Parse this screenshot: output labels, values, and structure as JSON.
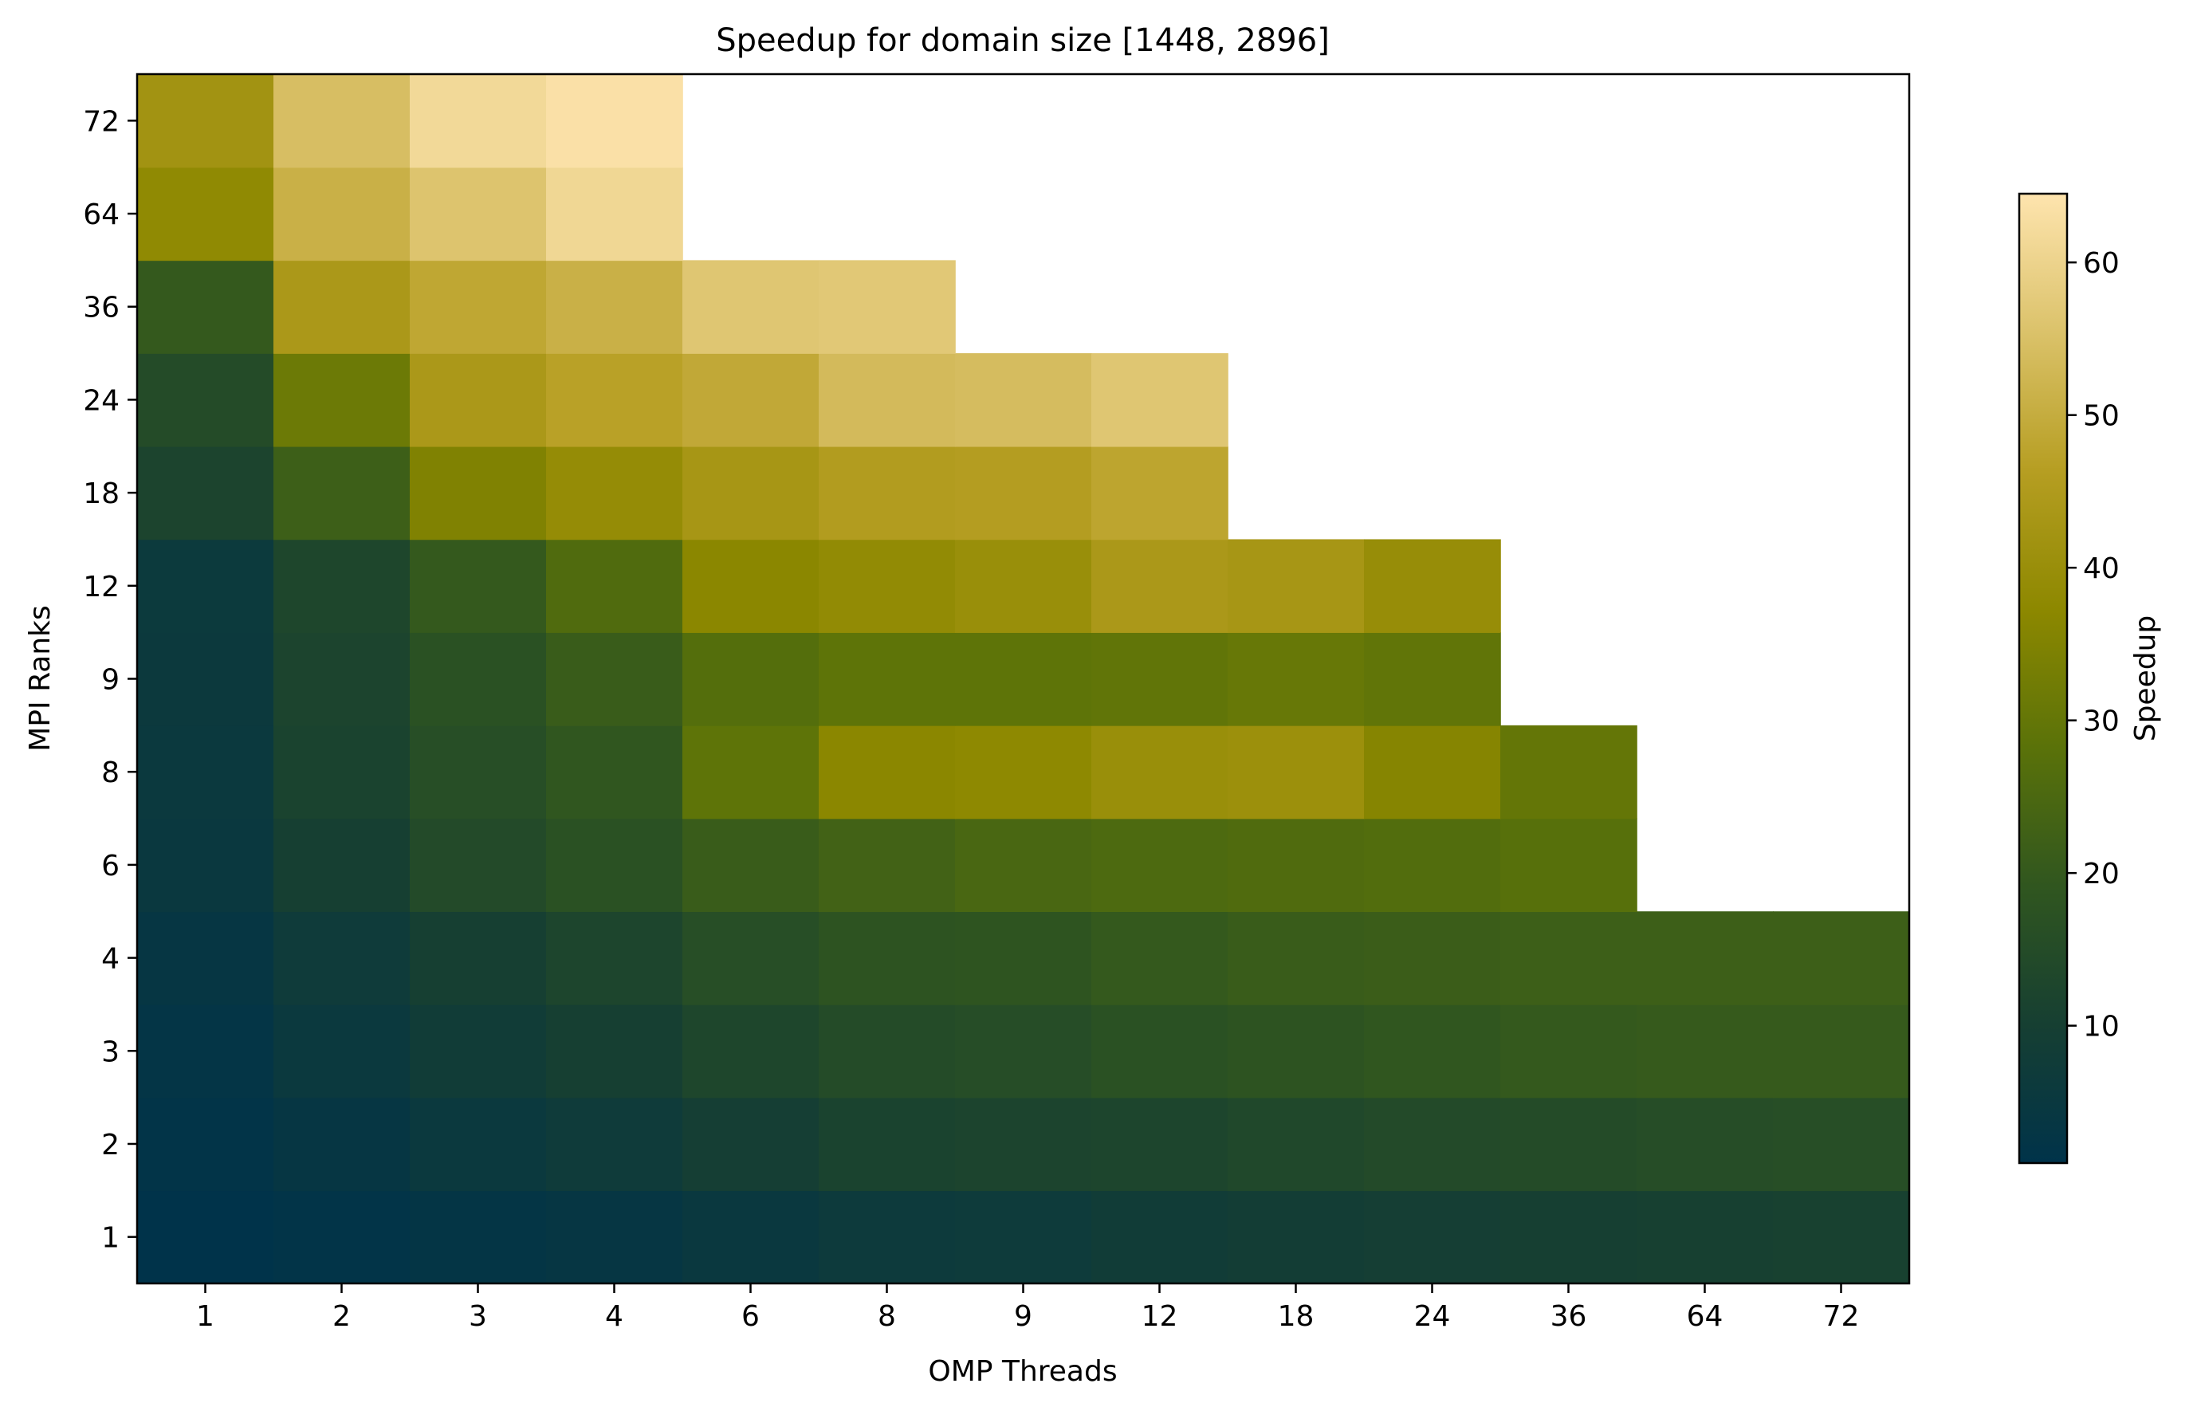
{
  "chart_data": {
    "type": "heatmap",
    "title": "Speedup for domain size [1448, 2896]",
    "xlabel": "OMP Threads",
    "ylabel": "MPI Ranks",
    "x_categories": [
      "1",
      "2",
      "3",
      "4",
      "6",
      "8",
      "9",
      "12",
      "18",
      "24",
      "36",
      "64",
      "72"
    ],
    "y_categories": [
      "1",
      "2",
      "3",
      "4",
      "6",
      "8",
      "9",
      "12",
      "18",
      "24",
      "36",
      "64",
      "72"
    ],
    "values": [
      [
        1.0,
        1.9,
        2.8,
        3.6,
        5.0,
        6.2,
        6.8,
        8.0,
        8.8,
        9.5,
        10.0,
        10.5,
        10.8
      ],
      [
        1.9,
        3.6,
        5.5,
        7.0,
        9.5,
        11.5,
        12.0,
        12.5,
        13.5,
        14.5,
        15.0,
        15.5,
        16.0
      ],
      [
        2.7,
        5.5,
        8.0,
        10.0,
        13.0,
        15.0,
        15.5,
        17.0,
        18.0,
        19.0,
        20.0,
        20.5,
        20.5
      ],
      [
        3.6,
        7.0,
        10.0,
        12.5,
        16.0,
        18.0,
        18.5,
        20.0,
        21.0,
        21.5,
        22.0,
        22.0,
        22.0
      ],
      [
        5.0,
        10.0,
        14.5,
        17.0,
        21.0,
        23.0,
        24.5,
        25.5,
        26.0,
        26.5,
        27.5,
        null,
        null
      ],
      [
        5.5,
        11.5,
        16.0,
        19.0,
        29.0,
        37.0,
        37.5,
        40.0,
        40.5,
        36.0,
        30.0,
        null,
        null
      ],
      [
        5.8,
        12.0,
        17.0,
        21.0,
        27.0,
        29.0,
        29.0,
        29.5,
        30.5,
        29.5,
        null,
        null,
        null
      ],
      [
        6.0,
        13.0,
        20.0,
        26.0,
        37.0,
        38.5,
        40.0,
        44.0,
        43.0,
        39.5,
        null,
        null,
        null
      ],
      [
        12.0,
        22.0,
        35.0,
        39.0,
        43.0,
        45.5,
        46.0,
        48.0,
        null,
        null,
        null,
        null,
        null
      ],
      [
        15.0,
        31.5,
        44.0,
        47.0,
        49.0,
        53.5,
        54.0,
        56.5,
        null,
        null,
        null,
        null,
        null
      ],
      [
        20.0,
        44.0,
        48.5,
        51.0,
        56.5,
        57.0,
        null,
        null,
        null,
        null,
        null,
        null,
        null
      ],
      [
        38.0,
        51.0,
        56.0,
        61.0,
        null,
        null,
        null,
        null,
        null,
        null,
        null,
        null,
        null
      ],
      [
        42.0,
        54.5,
        61.5,
        63.5,
        null,
        null,
        null,
        null,
        null,
        null,
        null,
        null,
        null
      ]
    ],
    "colorbar": {
      "label": "Speedup",
      "vmin": 1,
      "vmax": 64.5,
      "ticks": [
        "10",
        "20",
        "30",
        "40",
        "50",
        "60"
      ],
      "colormap": [
        "#00334a",
        "#163f32",
        "#30561f",
        "#5a7209",
        "#8d8800",
        "#b69e22",
        "#dbc26a",
        "#fee4ae"
      ]
    },
    "grid": false,
    "legend": "colorbar-right"
  }
}
